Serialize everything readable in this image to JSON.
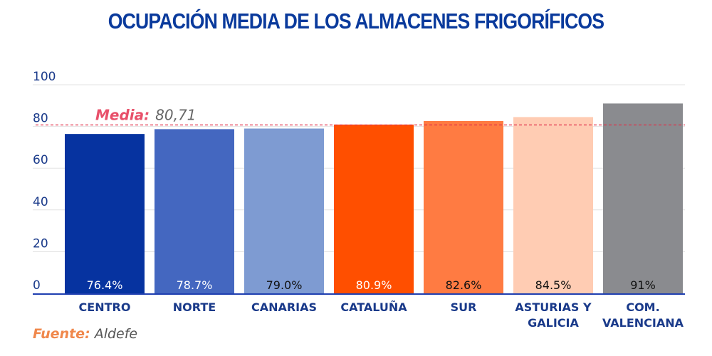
{
  "colors": {
    "title": "#0a3a9c",
    "axis_text": "#1a3a8a",
    "axis_line": "#1f3fb0",
    "grid": "#e3e3e3",
    "media_line": "#e0304a",
    "media_label": "#e8506a",
    "media_value": "#666666"
  },
  "chart_data": {
    "type": "bar",
    "title": "OCUPACIÓN MEDIA DE LOS ALMACENES FRIGORÍFICOS",
    "categories": [
      "CENTRO",
      "NORTE",
      "CANARIAS",
      "CATALUÑA",
      "SUR",
      "ASTURIAS Y GALICIA",
      "COM. VALENCIANA"
    ],
    "category_lines": [
      [
        "CENTRO"
      ],
      [
        "NORTE"
      ],
      [
        "CANARIAS"
      ],
      [
        "CATALUÑA"
      ],
      [
        "SUR"
      ],
      [
        "ASTURIAS Y",
        "GALICIA"
      ],
      [
        "COM.",
        "VALENCIANA"
      ]
    ],
    "values": [
      76.4,
      78.7,
      79.0,
      80.9,
      82.6,
      84.5,
      91
    ],
    "value_labels": [
      "76.4%",
      "78.7%",
      "79.0%",
      "80.9%",
      "82.6%",
      "84.5%",
      "91%"
    ],
    "bar_colors": [
      "#0633a0",
      "#4467c0",
      "#7e9bd2",
      "#ff4f00",
      "#ff7b42",
      "#ffccb3",
      "#8a8b8f"
    ],
    "label_colors": [
      "#ffffff",
      "#ffffff",
      "#111111",
      "#ffffff",
      "#111111",
      "#111111",
      "#111111"
    ],
    "yticks": [
      0,
      20,
      40,
      60,
      80,
      100
    ],
    "ylim": [
      0,
      100
    ],
    "grid": true,
    "reference_line": {
      "label": "Media:",
      "value_text": "80,71",
      "value": 80.71
    }
  },
  "source": {
    "label": "Fuente:",
    "value": "Aldefe"
  }
}
